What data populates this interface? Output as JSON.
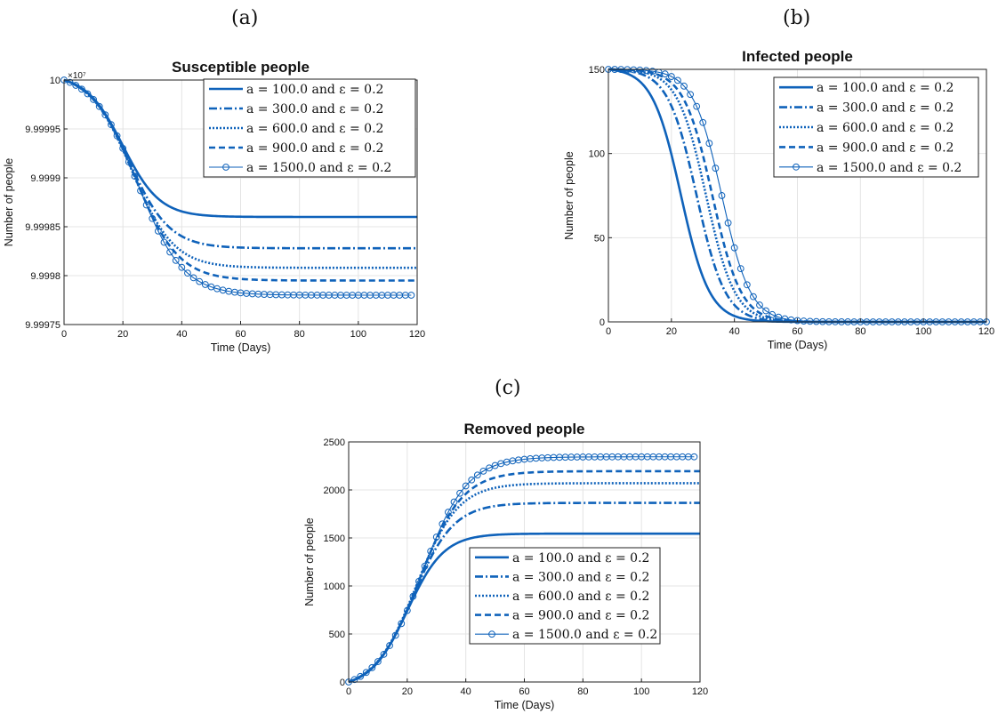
{
  "panel_labels": [
    "(a)",
    "(b)",
    "(c)"
  ],
  "chart_data": [
    {
      "type": "line",
      "title": "Susceptible people",
      "xlabel": "Time (Days)",
      "ylabel": "Number of people",
      "xlim": [
        0,
        120
      ],
      "ylim": [
        9.99975,
        10
      ],
      "exponent_label": "×10⁷",
      "grid": true,
      "legend_position": "top-right",
      "xticks": [
        "0",
        "20",
        "40",
        "60",
        "80",
        "100",
        "120"
      ],
      "yticks": [
        "9.99975",
        "9.9998",
        "9.99985",
        "9.9999",
        "9.99995",
        "10"
      ],
      "series": [
        {
          "name": "a = 100.0 and ε = 0.2",
          "style": "solid",
          "start": 10,
          "end": 9.99986,
          "k": 0.16,
          "t0": 20,
          "tmax": 120
        },
        {
          "name": "a = 300.0 and ε = 0.2",
          "style": "dashdot",
          "start": 10,
          "end": 9.999828,
          "k": 0.145,
          "t0": 22,
          "tmax": 120
        },
        {
          "name": "a = 600.0 and ε = 0.2",
          "style": "dotted",
          "start": 10,
          "end": 9.999808,
          "k": 0.14,
          "t0": 23,
          "tmax": 120
        },
        {
          "name": "a = 900.0 and ε = 0.2",
          "style": "dashed",
          "start": 10,
          "end": 9.999795,
          "k": 0.135,
          "t0": 24,
          "tmax": 120
        },
        {
          "name": "a = 1500.0 and ε = 0.2",
          "style": "circles",
          "start": 10,
          "end": 9.99978,
          "k": 0.13,
          "t0": 25,
          "tmax": 118
        }
      ]
    },
    {
      "type": "line",
      "title": "Infected people",
      "xlabel": "Time (Days)",
      "ylabel": "Number of people",
      "xlim": [
        0,
        120
      ],
      "ylim": [
        0,
        150
      ],
      "grid": true,
      "legend_position": "top-right",
      "xticks": [
        "0",
        "20",
        "40",
        "60",
        "80",
        "100",
        "120"
      ],
      "yticks": [
        "0",
        "50",
        "100",
        "150"
      ],
      "series": [
        {
          "name": "a = 100.0 and ε = 0.2",
          "style": "solid",
          "start": 150,
          "end": 0,
          "k": 0.22,
          "t0": 23,
          "tmax": 120
        },
        {
          "name": "a = 300.0 and ε = 0.2",
          "style": "dashdot",
          "start": 150,
          "end": 0,
          "k": 0.22,
          "t0": 28,
          "tmax": 120
        },
        {
          "name": "a = 600.0 and ε = 0.2",
          "style": "dotted",
          "start": 150,
          "end": 0,
          "k": 0.22,
          "t0": 31,
          "tmax": 120
        },
        {
          "name": "a = 900.0 and ε = 0.2",
          "style": "dashed",
          "start": 150,
          "end": 0,
          "k": 0.22,
          "t0": 33,
          "tmax": 120
        },
        {
          "name": "a = 1500.0 and ε = 0.2",
          "style": "circles",
          "start": 150,
          "end": 0,
          "k": 0.22,
          "t0": 36,
          "tmax": 120
        }
      ]
    },
    {
      "type": "line",
      "title": "Removed people",
      "xlabel": "Time (Days)",
      "ylabel": "Number of people",
      "xlim": [
        0,
        120
      ],
      "ylim": [
        0,
        2500
      ],
      "grid": true,
      "legend_position": "bottom-right",
      "xticks": [
        "0",
        "20",
        "40",
        "60",
        "80",
        "100",
        "120"
      ],
      "yticks": [
        "0",
        "500",
        "1000",
        "1500",
        "2000",
        "2500"
      ],
      "series": [
        {
          "name": "a = 100.0 and ε = 0.2",
          "style": "solid",
          "start": 0,
          "end": 1545,
          "k": 0.16,
          "t0": 20,
          "tmax": 120
        },
        {
          "name": "a = 300.0 and ε = 0.2",
          "style": "dashdot",
          "start": 0,
          "end": 1865,
          "k": 0.145,
          "t0": 22,
          "tmax": 120
        },
        {
          "name": "a = 600.0 and ε = 0.2",
          "style": "dotted",
          "start": 0,
          "end": 2070,
          "k": 0.14,
          "t0": 23,
          "tmax": 120
        },
        {
          "name": "a = 900.0 and ε = 0.2",
          "style": "dashed",
          "start": 0,
          "end": 2195,
          "k": 0.135,
          "t0": 24,
          "tmax": 120
        },
        {
          "name": "a = 1500.0 and ε = 0.2",
          "style": "circles",
          "start": 0,
          "end": 2345,
          "k": 0.13,
          "t0": 25,
          "tmax": 118
        }
      ]
    }
  ],
  "colors": {
    "line": "#0f62ba",
    "grid": "#e4e4e4",
    "axis": "#222222"
  }
}
